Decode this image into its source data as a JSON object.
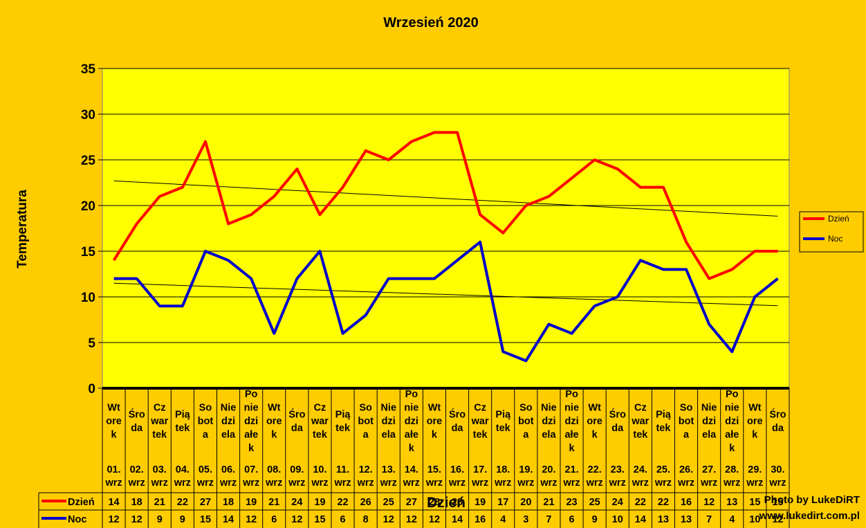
{
  "chart_data": {
    "type": "line",
    "title": "Wrzesień 2020",
    "xlabel": "Dzień",
    "ylabel": "Temperatura",
    "ylim": [
      0,
      35
    ],
    "yticks": [
      0,
      5,
      10,
      15,
      20,
      25,
      30,
      35
    ],
    "grid": true,
    "legend": "right",
    "categories": [
      {
        "day": "Wtorek",
        "lines": [
          "Wt",
          "ore",
          "k"
        ],
        "date": [
          "01.",
          "wrz"
        ]
      },
      {
        "day": "Środa",
        "lines": [
          "Śro",
          "da"
        ],
        "date": [
          "02.",
          "wrz"
        ]
      },
      {
        "day": "Czwartek",
        "lines": [
          "Cz",
          "war",
          "tek"
        ],
        "date": [
          "03.",
          "wrz"
        ]
      },
      {
        "day": "Piątek",
        "lines": [
          "Pią",
          "tek"
        ],
        "date": [
          "04.",
          "wrz"
        ]
      },
      {
        "day": "Sobota",
        "lines": [
          "So",
          "bot",
          "a"
        ],
        "date": [
          "05.",
          "wrz"
        ]
      },
      {
        "day": "Niedziela",
        "lines": [
          "Nie",
          "dzi",
          "ela"
        ],
        "date": [
          "06.",
          "wrz"
        ]
      },
      {
        "day": "Poniedziałek",
        "lines": [
          "Po",
          "nie",
          "dzi",
          "ałe",
          "k"
        ],
        "date": [
          "07.",
          "wrz"
        ]
      },
      {
        "day": "Wtorek",
        "lines": [
          "Wt",
          "ore",
          "k"
        ],
        "date": [
          "08.",
          "wrz"
        ]
      },
      {
        "day": "Środa",
        "lines": [
          "Śro",
          "da"
        ],
        "date": [
          "09.",
          "wrz"
        ]
      },
      {
        "day": "Czwartek",
        "lines": [
          "Cz",
          "war",
          "tek"
        ],
        "date": [
          "10.",
          "wrz"
        ]
      },
      {
        "day": "Piątek",
        "lines": [
          "Pią",
          "tek"
        ],
        "date": [
          "11.",
          "wrz"
        ]
      },
      {
        "day": "Sobota",
        "lines": [
          "So",
          "bot",
          "a"
        ],
        "date": [
          "12.",
          "wrz"
        ]
      },
      {
        "day": "Niedziela",
        "lines": [
          "Nie",
          "dzi",
          "ela"
        ],
        "date": [
          "13.",
          "wrz"
        ]
      },
      {
        "day": "Poniedziałek",
        "lines": [
          "Po",
          "nie",
          "dzi",
          "ałe",
          "k"
        ],
        "date": [
          "14.",
          "wrz"
        ]
      },
      {
        "day": "Wtorek",
        "lines": [
          "Wt",
          "ore",
          "k"
        ],
        "date": [
          "15.",
          "wrz"
        ]
      },
      {
        "day": "Środa",
        "lines": [
          "Śro",
          "da"
        ],
        "date": [
          "16.",
          "wrz"
        ]
      },
      {
        "day": "Czwartek",
        "lines": [
          "Cz",
          "war",
          "tek"
        ],
        "date": [
          "17.",
          "wrz"
        ]
      },
      {
        "day": "Piątek",
        "lines": [
          "Pią",
          "tek"
        ],
        "date": [
          "18.",
          "wrz"
        ]
      },
      {
        "day": "Sobota",
        "lines": [
          "So",
          "bot",
          "a"
        ],
        "date": [
          "19.",
          "wrz"
        ]
      },
      {
        "day": "Niedziela",
        "lines": [
          "Nie",
          "dzi",
          "ela"
        ],
        "date": [
          "20.",
          "wrz"
        ]
      },
      {
        "day": "Poniedziałek",
        "lines": [
          "Po",
          "nie",
          "dzi",
          "ałe",
          "k"
        ],
        "date": [
          "21.",
          "wrz"
        ]
      },
      {
        "day": "Wtorek",
        "lines": [
          "Wt",
          "ore",
          "k"
        ],
        "date": [
          "22.",
          "wrz"
        ]
      },
      {
        "day": "Środa",
        "lines": [
          "Śro",
          "da"
        ],
        "date": [
          "23.",
          "wrz"
        ]
      },
      {
        "day": "Czwartek",
        "lines": [
          "Cz",
          "war",
          "tek"
        ],
        "date": [
          "24.",
          "wrz"
        ]
      },
      {
        "day": "Piątek",
        "lines": [
          "Pią",
          "tek"
        ],
        "date": [
          "25.",
          "wrz"
        ]
      },
      {
        "day": "Sobota",
        "lines": [
          "So",
          "bot",
          "a"
        ],
        "date": [
          "26.",
          "wrz"
        ]
      },
      {
        "day": "Niedziela",
        "lines": [
          "Nie",
          "dzi",
          "ela"
        ],
        "date": [
          "27.",
          "wrz"
        ]
      },
      {
        "day": "Poniedziałek",
        "lines": [
          "Po",
          "nie",
          "dzi",
          "ałe",
          "k"
        ],
        "date": [
          "28.",
          "wrz"
        ]
      },
      {
        "day": "Wtorek",
        "lines": [
          "Wt",
          "ore",
          "k"
        ],
        "date": [
          "29.",
          "wrz"
        ]
      },
      {
        "day": "Środa",
        "lines": [
          "Śro",
          "da"
        ],
        "date": [
          "30.",
          "wrz"
        ]
      }
    ],
    "series": [
      {
        "name": "Dzień",
        "color": "#FF0000",
        "values": [
          14,
          18,
          21,
          22,
          27,
          18,
          19,
          21,
          24,
          19,
          22,
          26,
          25,
          27,
          28,
          28,
          19,
          17,
          20,
          21,
          23,
          25,
          24,
          22,
          22,
          16,
          12,
          13,
          15,
          15
        ]
      },
      {
        "name": "Noc",
        "color": "#0000CC",
        "values": [
          12,
          12,
          9,
          9,
          15,
          14,
          12,
          6,
          12,
          15,
          6,
          8,
          12,
          12,
          12,
          14,
          16,
          4,
          3,
          7,
          6,
          9,
          10,
          14,
          13,
          13,
          7,
          4,
          10,
          12
        ]
      }
    ]
  },
  "colors": {
    "background": "#FFCC00",
    "plot_area": "#FFFF00",
    "trendline": "#000000"
  },
  "credit": {
    "line1": "Photo by LukeDiRT",
    "line2": "www.lukedirt.com.pl"
  }
}
